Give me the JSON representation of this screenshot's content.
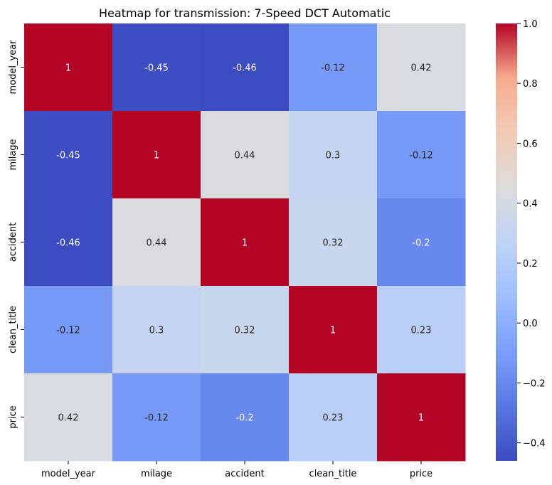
{
  "chart_data": {
    "type": "heatmap",
    "title": "Heatmap for transmission: 7-Speed DCT Automatic",
    "xlabel": "",
    "ylabel": "",
    "x_categories": [
      "model_year",
      "milage",
      "accident",
      "clean_title",
      "price"
    ],
    "y_categories": [
      "model_year",
      "milage",
      "accident",
      "clean_title",
      "price"
    ],
    "values": [
      [
        1,
        -0.45,
        -0.46,
        -0.12,
        0.42
      ],
      [
        -0.45,
        1,
        0.44,
        0.3,
        -0.12
      ],
      [
        -0.46,
        0.44,
        1,
        0.32,
        -0.2
      ],
      [
        -0.12,
        0.3,
        0.32,
        1,
        0.23
      ],
      [
        0.42,
        -0.12,
        -0.2,
        0.23,
        1
      ]
    ],
    "cell_labels": [
      [
        "1",
        "-0.45",
        "-0.46",
        "-0.12",
        "0.42"
      ],
      [
        "-0.45",
        "1",
        "0.44",
        "0.3",
        "-0.12"
      ],
      [
        "-0.46",
        "0.44",
        "1",
        "0.32",
        "-0.2"
      ],
      [
        "-0.12",
        "0.3",
        "0.32",
        "1",
        "0.23"
      ],
      [
        "0.42",
        "-0.12",
        "-0.2",
        "0.23",
        "1"
      ]
    ],
    "colormap": "coolwarm",
    "vmin": -0.46,
    "vmax": 1,
    "colorbar_ticks": [
      1.0,
      0.8,
      0.6,
      0.4,
      0.2,
      0.0,
      -0.2,
      -0.4
    ],
    "colorbar_tick_labels": [
      "1.0",
      "0.8",
      "0.6",
      "0.4",
      "0.2",
      "0.0",
      "−0.2",
      "−0.4"
    ],
    "colorbar_position": "right",
    "grid": false
  }
}
